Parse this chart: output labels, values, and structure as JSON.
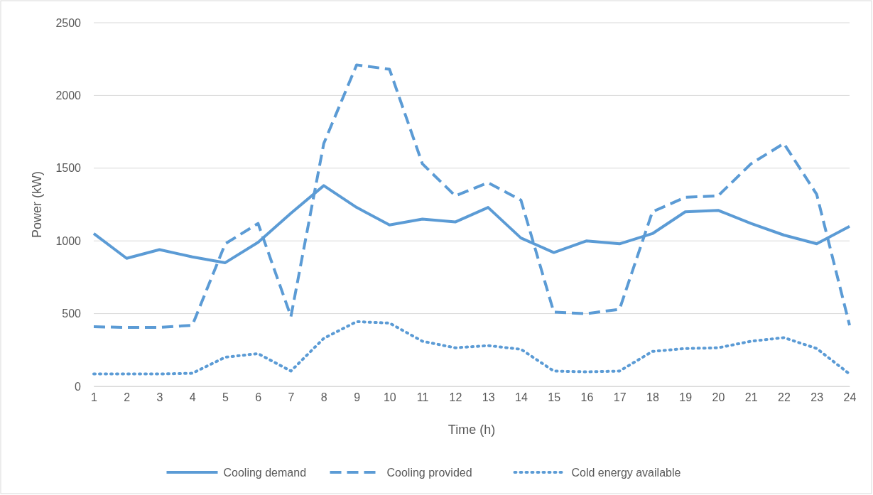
{
  "chart_data": {
    "type": "line",
    "xlabel": "Time (h)",
    "ylabel": "Power (kW)",
    "x": [
      1,
      2,
      3,
      4,
      5,
      6,
      7,
      8,
      9,
      10,
      11,
      12,
      13,
      14,
      15,
      16,
      17,
      18,
      19,
      20,
      21,
      22,
      23,
      24
    ],
    "xlim": [
      1,
      24
    ],
    "xticks": [
      1,
      2,
      3,
      4,
      5,
      6,
      7,
      8,
      9,
      10,
      11,
      12,
      13,
      14,
      15,
      16,
      17,
      18,
      19,
      20,
      21,
      22,
      23,
      24
    ],
    "ylim": [
      0,
      2500
    ],
    "yticks": [
      0,
      500,
      1000,
      1500,
      2000,
      2500
    ],
    "grid": "y",
    "legend": "bottom",
    "series": [
      {
        "name": "Cooling demand",
        "color": "#5b9bd5",
        "line_style": "solid",
        "values": [
          1050,
          880,
          940,
          890,
          850,
          990,
          1190,
          1380,
          1230,
          1110,
          1150,
          1130,
          1230,
          1020,
          920,
          1000,
          980,
          1050,
          1200,
          1210,
          1120,
          1040,
          980,
          1100
        ]
      },
      {
        "name": "Cooling provided",
        "color": "#5b9bd5",
        "line_style": "dashed",
        "values": [
          410,
          405,
          405,
          420,
          980,
          1120,
          480,
          1670,
          2210,
          2180,
          1530,
          1310,
          1400,
          1280,
          510,
          500,
          530,
          1200,
          1300,
          1310,
          1530,
          1670,
          1320,
          420
        ]
      },
      {
        "name": "Cold energy available",
        "color": "#5b9bd5",
        "line_style": "dotted",
        "values": [
          85,
          85,
          85,
          90,
          200,
          225,
          105,
          330,
          445,
          435,
          310,
          265,
          280,
          255,
          105,
          100,
          105,
          240,
          260,
          265,
          310,
          335,
          260,
          85
        ]
      }
    ]
  }
}
